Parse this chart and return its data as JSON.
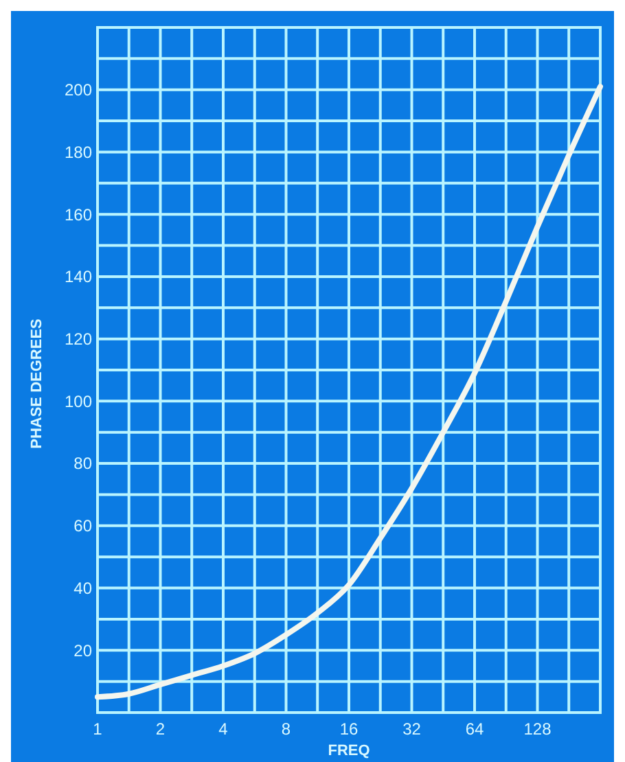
{
  "chart_data": {
    "type": "line",
    "xlabel": "FREQ",
    "ylabel": "PHASE DEGREES",
    "log": "x",
    "grid": true,
    "xlim": [
      1,
      256
    ],
    "ylim": [
      0,
      220
    ],
    "xticks": [
      1,
      {
        "value": 1.414,
        "label": null
      },
      2,
      {
        "value": 2.828,
        "label": null
      },
      4,
      {
        "value": 5.657,
        "label": null
      },
      8,
      {
        "value": 11.31,
        "label": null
      },
      16,
      {
        "value": 22.63,
        "label": null
      },
      32,
      {
        "value": 45.25,
        "label": null
      },
      64,
      {
        "value": 90.51,
        "label": null
      },
      128,
      {
        "value": 181,
        "label": null
      },
      {
        "value": 256,
        "label": null
      }
    ],
    "yticks": [
      {
        "value": 10,
        "label": null
      },
      20,
      {
        "value": 30,
        "label": null
      },
      40,
      {
        "value": 50,
        "label": null
      },
      60,
      {
        "value": 70,
        "label": null
      },
      80,
      {
        "value": 90,
        "label": null
      },
      100,
      {
        "value": 110,
        "label": null
      },
      120,
      {
        "value": 130,
        "label": null
      },
      140,
      {
        "value": 150,
        "label": null
      },
      160,
      {
        "value": 170,
        "label": null
      },
      180,
      {
        "value": 190,
        "label": null
      },
      200,
      {
        "value": 210,
        "label": null
      },
      {
        "value": 220,
        "label": null
      }
    ],
    "marker": "none",
    "line_style": "solid",
    "series": [
      {
        "color": "#f4f6ee",
        "x": [
          1,
          1.414,
          2,
          2.828,
          4,
          5.657,
          8,
          11.31,
          16,
          22.63,
          32,
          45.25,
          64,
          90.51,
          128,
          181,
          256
        ],
        "values": [
          5,
          6,
          9,
          12,
          15,
          19,
          25,
          32,
          41,
          56,
          72,
          90,
          109,
          132,
          156,
          179,
          201
        ]
      }
    ]
  }
}
